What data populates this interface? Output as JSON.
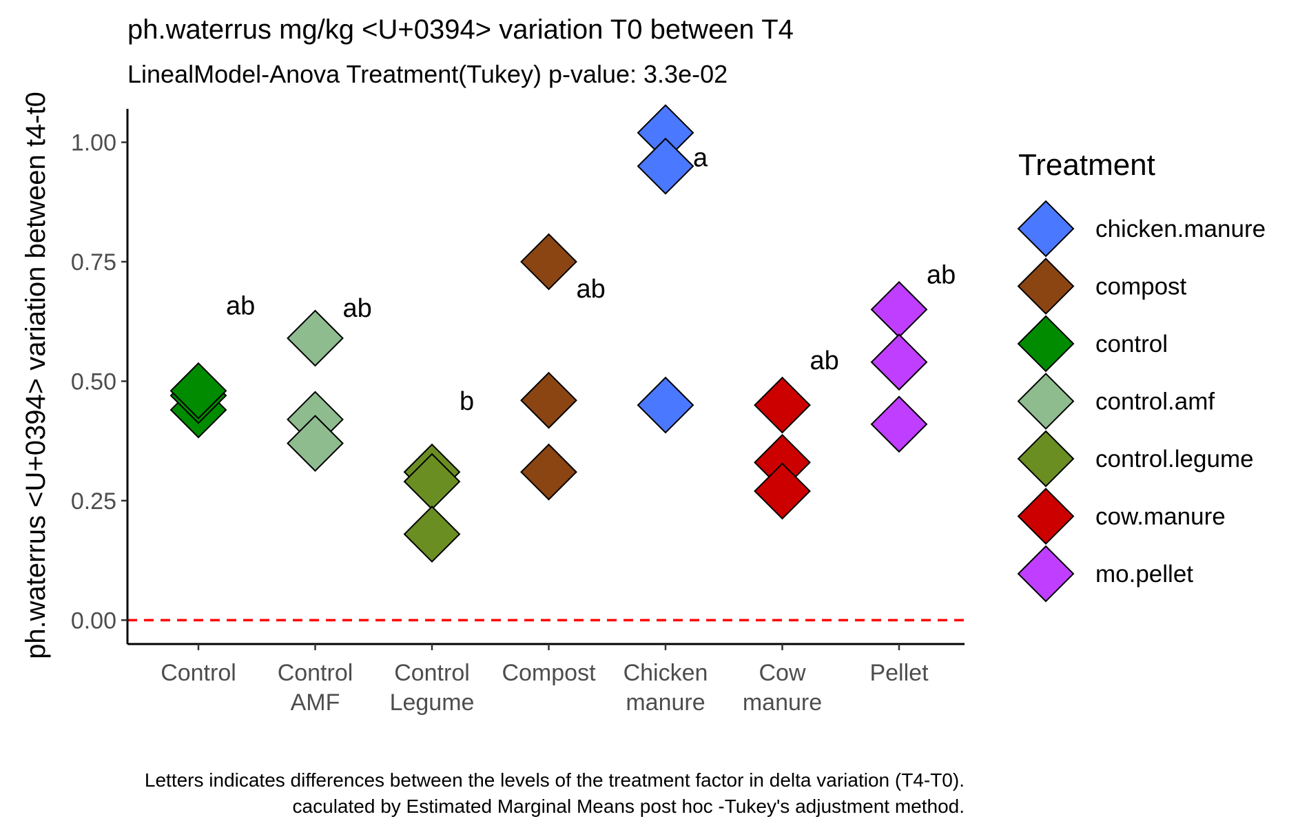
{
  "chart_data": {
    "type": "scatter",
    "title": "ph.waterrus mg/kg <U+0394> variation T0 between T4",
    "subtitle": "LinealModel-Anova Treatment(Tukey) p-value: 3.3e-02",
    "xlabel": "",
    "ylabel": "ph.waterrus <U+0394> variation between t4-t0",
    "ylim": [
      -0.05,
      1.07
    ],
    "yticks": [
      "0.00",
      "0.25",
      "0.50",
      "0.75",
      "1.00"
    ],
    "ytick_values": [
      0,
      0.25,
      0.5,
      0.75,
      1.0
    ],
    "reference_line": {
      "y": 0,
      "style": "dashed",
      "color": "#ff0000"
    },
    "categories": [
      {
        "lines": [
          "Control"
        ],
        "treatment": "control",
        "letter": "ab",
        "letter_y": 0.66,
        "values": [
          0.44,
          0.47,
          0.48
        ]
      },
      {
        "lines": [
          "Control",
          "AMF"
        ],
        "treatment": "control.amf",
        "letter": "ab",
        "letter_y": 0.655,
        "values": [
          0.59,
          0.42,
          0.37
        ]
      },
      {
        "lines": [
          "Control",
          "Legume"
        ],
        "treatment": "control.legume",
        "letter": "b",
        "letter_y": 0.46,
        "values": [
          0.31,
          0.29,
          0.18
        ]
      },
      {
        "lines": [
          "Compost"
        ],
        "treatment": "compost",
        "letter": "ab",
        "letter_y": 0.695,
        "values": [
          0.75,
          0.46,
          0.31
        ]
      },
      {
        "lines": [
          "Chicken",
          "manure"
        ],
        "treatment": "chicken.manure",
        "letter": "a",
        "letter_y": 0.97,
        "values": [
          1.02,
          0.95,
          0.45
        ]
      },
      {
        "lines": [
          "Cow",
          "manure"
        ],
        "treatment": "cow.manure",
        "letter": "ab",
        "letter_y": 0.545,
        "values": [
          0.45,
          0.33,
          0.27
        ]
      },
      {
        "lines": [
          "Pellet"
        ],
        "treatment": "mo.pellet",
        "letter": "ab",
        "letter_y": 0.725,
        "values": [
          0.65,
          0.54,
          0.41
        ]
      }
    ],
    "legend": {
      "title": "Treatment",
      "position": "right",
      "items": [
        {
          "name": "chicken.manure",
          "color": "#4a78ff"
        },
        {
          "name": "compost",
          "color": "#8b4513"
        },
        {
          "name": "control",
          "color": "#008b00"
        },
        {
          "name": "control.amf",
          "color": "#8fbc8f"
        },
        {
          "name": "control.legume",
          "color": "#6b8e23"
        },
        {
          "name": "cow.manure",
          "color": "#cd0000"
        },
        {
          "name": "mo.pellet",
          "color": "#bf3eff"
        }
      ]
    },
    "caption": [
      "Letters indicates differences between the levels of the treatment factor in delta variation (T4-T0).",
      "caculated by Estimated Marginal Means post hoc -Tukey's adjustment method."
    ],
    "grid": false
  }
}
